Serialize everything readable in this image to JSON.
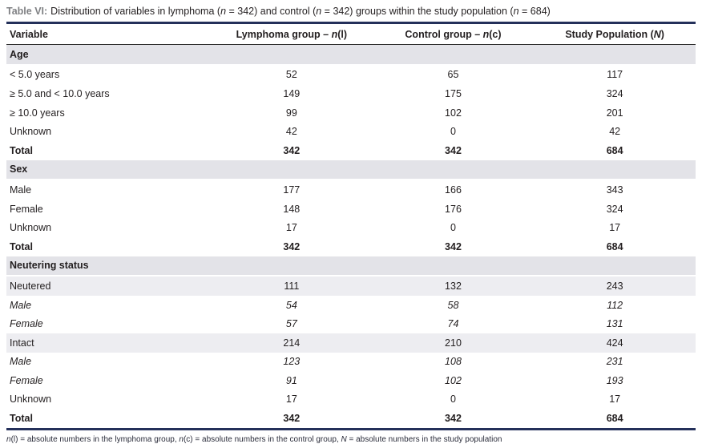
{
  "title": {
    "label": "Table VI:",
    "segments": [
      {
        "t": "Distribution of variables in lymphoma ("
      },
      {
        "t": "n",
        "i": true
      },
      {
        "t": " = 342) and control ("
      },
      {
        "t": "n",
        "i": true
      },
      {
        "t": " = 342) groups within the study population ("
      },
      {
        "t": "n",
        "i": true
      },
      {
        "t": " = 684)"
      }
    ]
  },
  "header": {
    "variable": "Variable",
    "lymphoma": [
      {
        "t": "Lymphoma group – "
      },
      {
        "t": "n",
        "i": true
      },
      {
        "t": "(l)"
      }
    ],
    "control": [
      {
        "t": "Control group – "
      },
      {
        "t": "n",
        "i": true
      },
      {
        "t": "(c)"
      }
    ],
    "population": [
      {
        "t": "Study Population ("
      },
      {
        "t": "N",
        "i": true
      },
      {
        "t": ")"
      }
    ]
  },
  "sections": [
    {
      "name": "Age",
      "rows": [
        {
          "label": "< 5.0 years",
          "values": [
            "52",
            "65",
            "117"
          ]
        },
        {
          "label": "≥ 5.0 and < 10.0 years",
          "values": [
            "149",
            "175",
            "324"
          ]
        },
        {
          "label": "≥ 10.0 years",
          "values": [
            "99",
            "102",
            "201"
          ]
        },
        {
          "label": "Unknown",
          "values": [
            "42",
            "0",
            "42"
          ]
        },
        {
          "label": "Total",
          "values": [
            "342",
            "342",
            "684"
          ],
          "bold": true
        }
      ]
    },
    {
      "name": "Sex",
      "rows": [
        {
          "label": "Male",
          "values": [
            "177",
            "166",
            "343"
          ]
        },
        {
          "label": "Female",
          "values": [
            "148",
            "176",
            "324"
          ]
        },
        {
          "label": "Unknown",
          "values": [
            "17",
            "0",
            "17"
          ]
        },
        {
          "label": "Total",
          "values": [
            "342",
            "342",
            "684"
          ],
          "bold": true
        }
      ]
    },
    {
      "name": "Neutering status",
      "rows": [
        {
          "label": "Neutered",
          "values": [
            "111",
            "132",
            "243"
          ],
          "shaded": true
        },
        {
          "label": "Male",
          "values": [
            "54",
            "58",
            "112"
          ],
          "italic": true
        },
        {
          "label": "Female",
          "values": [
            "57",
            "74",
            "131"
          ],
          "italic": true
        },
        {
          "label": "Intact",
          "values": [
            "214",
            "210",
            "424"
          ],
          "shaded": true
        },
        {
          "label": "Male",
          "values": [
            "123",
            "108",
            "231"
          ],
          "italic": true
        },
        {
          "label": "Female",
          "values": [
            "91",
            "102",
            "193"
          ],
          "italic": true
        },
        {
          "label": "Unknown",
          "values": [
            "17",
            "0",
            "17"
          ]
        },
        {
          "label": "Total",
          "values": [
            "342",
            "342",
            "684"
          ],
          "bold": true
        }
      ]
    }
  ],
  "footnote": [
    {
      "t": "n",
      "i": true
    },
    {
      "t": "(l) = absolute numbers in the lymphoma group, "
    },
    {
      "t": "n",
      "i": true
    },
    {
      "t": "(c) = absolute numbers in the control group, "
    },
    {
      "t": "N",
      "i": true
    },
    {
      "t": " = absolute numbers in the study population"
    }
  ],
  "colors": {
    "accent_navy": "#24305a",
    "title_label_gray": "#7f8083",
    "section_row_bg": "#e3e3e8",
    "shaded_row_bg": "#ededf1",
    "body_text": "#231f20"
  }
}
